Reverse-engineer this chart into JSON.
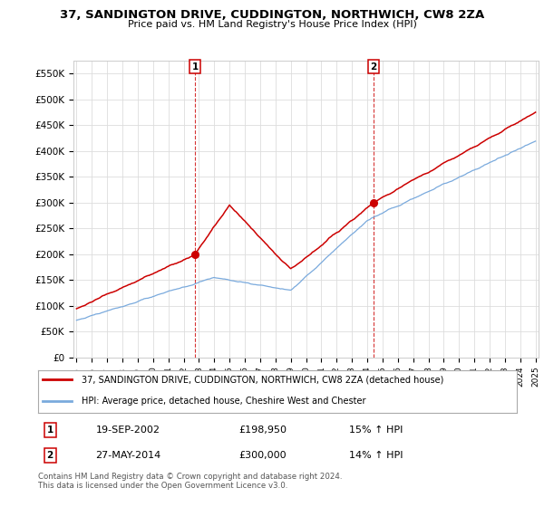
{
  "title": "37, SANDINGTON DRIVE, CUDDINGTON, NORTHWICH, CW8 2ZA",
  "subtitle": "Price paid vs. HM Land Registry's House Price Index (HPI)",
  "ylabel_ticks": [
    "£0",
    "£50K",
    "£100K",
    "£150K",
    "£200K",
    "£250K",
    "£300K",
    "£350K",
    "£400K",
    "£450K",
    "£500K",
    "£550K"
  ],
  "ytick_vals": [
    0,
    50000,
    100000,
    150000,
    200000,
    250000,
    300000,
    350000,
    400000,
    450000,
    500000,
    550000
  ],
  "ylim": [
    0,
    575000
  ],
  "sale1_year": 2002.72,
  "sale1_price": 198950,
  "sale1_date": "19-SEP-2002",
  "sale1_hpi": "15% ↑ HPI",
  "sale2_year": 2014.4,
  "sale2_price": 300000,
  "sale2_date": "27-MAY-2014",
  "sale2_hpi": "14% ↑ HPI",
  "red_line_color": "#cc0000",
  "blue_line_color": "#7aaadd",
  "background_color": "#ffffff",
  "grid_color": "#dddddd",
  "legend1": "37, SANDINGTON DRIVE, CUDDINGTON, NORTHWICH, CW8 2ZA (detached house)",
  "legend2": "HPI: Average price, detached house, Cheshire West and Chester",
  "footer": "Contains HM Land Registry data © Crown copyright and database right 2024.\nThis data is licensed under the Open Government Licence v3.0.",
  "xstart_year": 1995,
  "xend_year": 2025
}
